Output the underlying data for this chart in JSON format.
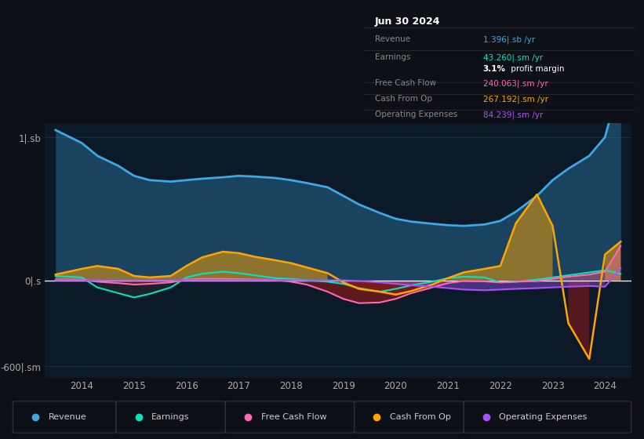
{
  "bg_color": "#0d1117",
  "plot_bg_color": "#0b1929",
  "years": [
    2013.5,
    2014.0,
    2014.3,
    2014.7,
    2015.0,
    2015.3,
    2015.7,
    2016.0,
    2016.3,
    2016.7,
    2017.0,
    2017.3,
    2017.7,
    2018.0,
    2018.3,
    2018.7,
    2019.0,
    2019.3,
    2019.7,
    2020.0,
    2020.3,
    2020.7,
    2021.0,
    2021.3,
    2021.7,
    2022.0,
    2022.3,
    2022.7,
    2023.0,
    2023.3,
    2023.7,
    2024.0,
    2024.3
  ],
  "revenue": [
    1050,
    960,
    870,
    800,
    730,
    700,
    690,
    700,
    710,
    720,
    730,
    725,
    715,
    700,
    680,
    650,
    590,
    530,
    470,
    430,
    410,
    395,
    385,
    380,
    390,
    415,
    480,
    590,
    700,
    780,
    870,
    1000,
    1400
  ],
  "earnings": [
    30,
    20,
    -50,
    -90,
    -120,
    -95,
    -50,
    20,
    45,
    60,
    50,
    35,
    15,
    10,
    0,
    -10,
    -25,
    -55,
    -80,
    -60,
    -35,
    -10,
    15,
    25,
    20,
    -15,
    -10,
    5,
    20,
    35,
    55,
    70,
    45
  ],
  "free_cash_flow": [
    5,
    5,
    -10,
    -20,
    -30,
    -25,
    -15,
    5,
    10,
    10,
    8,
    5,
    2,
    -10,
    -30,
    -80,
    -130,
    -160,
    -155,
    -130,
    -90,
    -50,
    -20,
    -5,
    -8,
    -15,
    -10,
    -5,
    10,
    25,
    40,
    60,
    240
  ],
  "cash_from_op": [
    40,
    80,
    100,
    80,
    30,
    20,
    30,
    100,
    160,
    200,
    190,
    165,
    140,
    120,
    90,
    50,
    -15,
    -60,
    -80,
    -100,
    -75,
    -30,
    15,
    55,
    80,
    100,
    400,
    600,
    380,
    -300,
    -550,
    180,
    270
  ],
  "operating_expenses": [
    0,
    0,
    0,
    0,
    0,
    0,
    0,
    0,
    0,
    0,
    0,
    0,
    0,
    0,
    0,
    0,
    0,
    -5,
    -15,
    -25,
    -35,
    -45,
    -55,
    -65,
    -70,
    -65,
    -60,
    -55,
    -50,
    -45,
    -40,
    -45,
    85
  ],
  "colors": {
    "revenue": "#3fa7e1",
    "earnings": "#00e5c0",
    "free_cash_flow": "#ff69b4",
    "cash_from_op": "#ffa500",
    "operating_expenses": "#a855f7"
  },
  "ylim": [
    -680,
    1100
  ],
  "ytick_positions": [
    -600,
    0,
    1000
  ],
  "ytick_labels": [
    "-600|.sm",
    "0|.s",
    "1|.sb"
  ],
  "xlim": [
    2013.3,
    2024.5
  ],
  "xtick_positions": [
    2014,
    2015,
    2016,
    2017,
    2018,
    2019,
    2020,
    2021,
    2022,
    2023,
    2024
  ],
  "xtick_labels": [
    "2014",
    "2015",
    "2016",
    "2017",
    "2018",
    "2019",
    "2020",
    "2021",
    "2022",
    "2023",
    "2024"
  ],
  "legend_items": [
    {
      "label": "Revenue",
      "color": "#3fa7e1"
    },
    {
      "label": "Earnings",
      "color": "#00e5c0"
    },
    {
      "label": "Free Cash Flow",
      "color": "#ff69b4"
    },
    {
      "label": "Cash From Op",
      "color": "#ffa500"
    },
    {
      "label": "Operating Expenses",
      "color": "#a855f7"
    }
  ],
  "infobox": {
    "title": "Jun 30 2024",
    "rows": [
      {
        "label": "Revenue",
        "value": "1.396|.sb /yr",
        "color": "#3fa7e1",
        "margin": null
      },
      {
        "label": "Earnings",
        "value": "43.260|.sm /yr",
        "color": "#00e5c0",
        "margin": "3.1% profit margin"
      },
      {
        "label": "Free Cash Flow",
        "value": "240.063|.sm /yr",
        "color": "#ff69b4",
        "margin": null
      },
      {
        "label": "Cash From Op",
        "value": "267.192|.sm /yr",
        "color": "#ffa500",
        "margin": null
      },
      {
        "label": "Operating Expenses",
        "value": "84.239|.sm /yr",
        "color": "#a855f7",
        "margin": null
      }
    ]
  }
}
